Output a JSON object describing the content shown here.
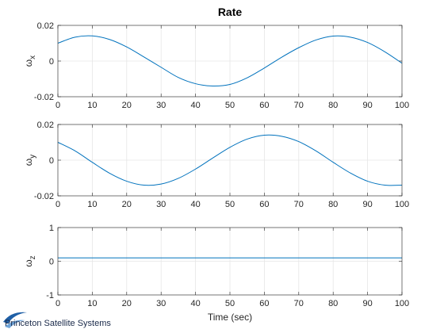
{
  "chart_data": [
    {
      "type": "line",
      "title": "Rate",
      "ylabel": "ω",
      "ylabel_sub": "x",
      "xlabel": "",
      "xlim": [
        0,
        100
      ],
      "ylim": [
        -0.02,
        0.02
      ],
      "xticks": [
        "0",
        "10",
        "20",
        "30",
        "40",
        "50",
        "60",
        "70",
        "80",
        "90",
        "100"
      ],
      "yticks": [
        "0.02",
        "0",
        "-0.02"
      ],
      "grid": true,
      "series": [
        {
          "x": [
            0,
            5,
            10,
            15,
            20,
            25,
            30,
            35,
            40,
            45,
            50,
            55,
            60,
            65,
            70,
            75,
            80,
            85,
            90,
            95,
            100
          ],
          "values": [
            0.01,
            0.0134,
            0.0141,
            0.0121,
            0.0079,
            0.0023,
            -0.0035,
            -0.0092,
            -0.0127,
            -0.014,
            -0.0131,
            -0.0094,
            -0.0039,
            0.0021,
            0.0075,
            0.0118,
            0.014,
            0.0134,
            0.0104,
            0.0052,
            -0.0012
          ],
          "color": "#0072BD"
        }
      ]
    },
    {
      "type": "line",
      "ylabel": "ω",
      "ylabel_sub": "y",
      "xlabel": "",
      "xlim": [
        0,
        100
      ],
      "ylim": [
        -0.02,
        0.02
      ],
      "xticks": [
        "0",
        "10",
        "20",
        "30",
        "40",
        "50",
        "60",
        "70",
        "80",
        "90",
        "100"
      ],
      "yticks": [
        "0.02",
        "0",
        "-0.02"
      ],
      "grid": true,
      "series": [
        {
          "x": [
            0,
            5,
            10,
            15,
            20,
            25,
            30,
            35,
            40,
            45,
            50,
            55,
            60,
            65,
            70,
            75,
            80,
            85,
            90,
            95,
            100
          ],
          "values": [
            0.01,
            0.0052,
            -0.0012,
            -0.0073,
            -0.0118,
            -0.014,
            -0.0134,
            -0.0102,
            -0.005,
            0.0012,
            0.0072,
            0.0118,
            0.014,
            0.0134,
            0.0104,
            0.0052,
            -0.0012,
            -0.0072,
            -0.0118,
            -0.014,
            -0.014
          ],
          "color": "#0072BD"
        }
      ]
    },
    {
      "type": "line",
      "ylabel": "ω",
      "ylabel_sub": "z",
      "xlabel": "Time (sec)",
      "xlim": [
        0,
        100
      ],
      "ylim": [
        -1,
        1
      ],
      "xticks": [
        "0",
        "10",
        "20",
        "30",
        "40",
        "50",
        "60",
        "70",
        "80",
        "90",
        "100"
      ],
      "yticks": [
        "1",
        "0",
        "-1"
      ],
      "grid": true,
      "series": [
        {
          "x": [
            0,
            100
          ],
          "values": [
            0.1,
            0.1
          ],
          "color": "#0072BD"
        }
      ]
    }
  ],
  "logo": {
    "text": "Princeton Satellite Systems",
    "color": "#1f5fa6"
  }
}
